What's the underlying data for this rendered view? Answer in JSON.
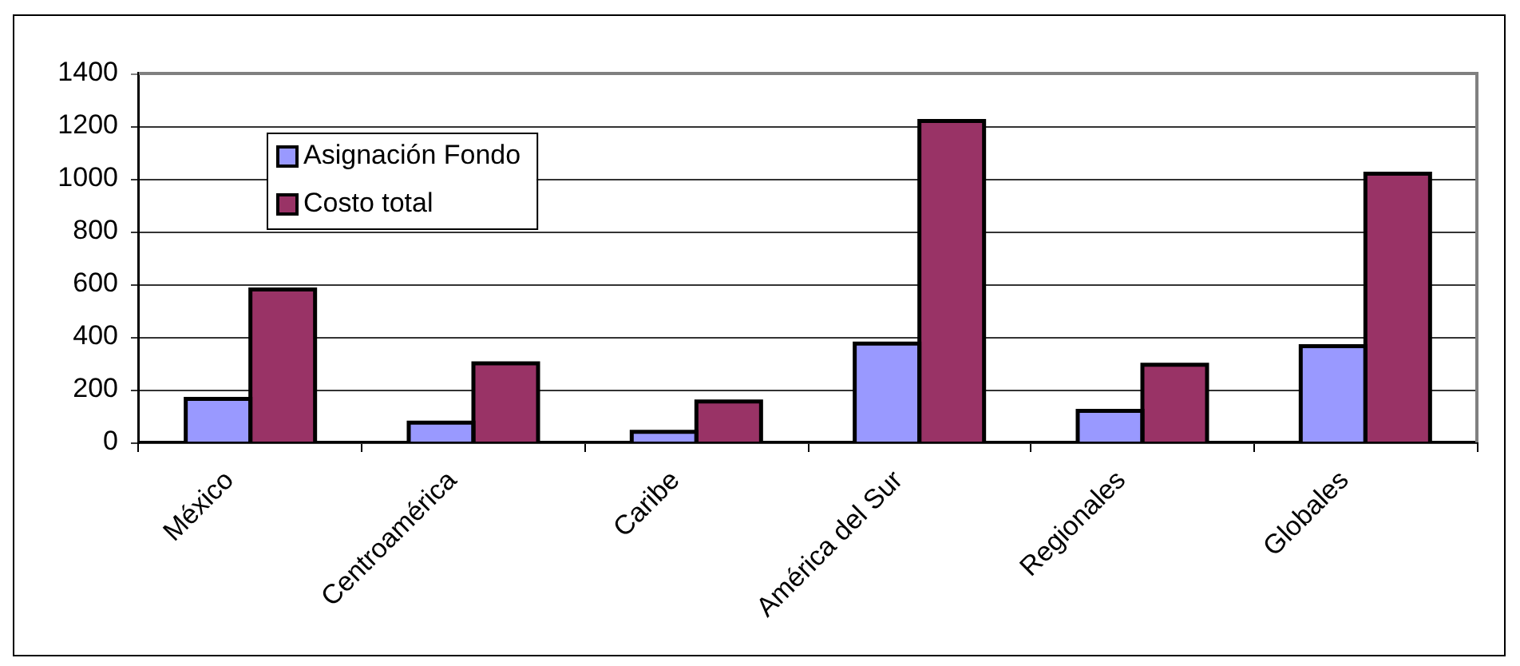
{
  "chart_data": {
    "type": "bar",
    "categories": [
      "México",
      "Centroamérica",
      "Caribe",
      "América del Sur",
      "Regionales",
      "Globales"
    ],
    "series": [
      {
        "name": "Asignación Fondo",
        "color": "#9999ff",
        "values": [
          165,
          75,
          40,
          375,
          120,
          365
        ]
      },
      {
        "name": "Costo total",
        "color": "#993366",
        "values": [
          580,
          300,
          155,
          1220,
          295,
          1020
        ]
      }
    ],
    "ylim": [
      0,
      1400
    ],
    "yticks": [
      0,
      200,
      400,
      600,
      800,
      1000,
      1200,
      1400
    ],
    "grid": "y",
    "legend": "top left"
  }
}
